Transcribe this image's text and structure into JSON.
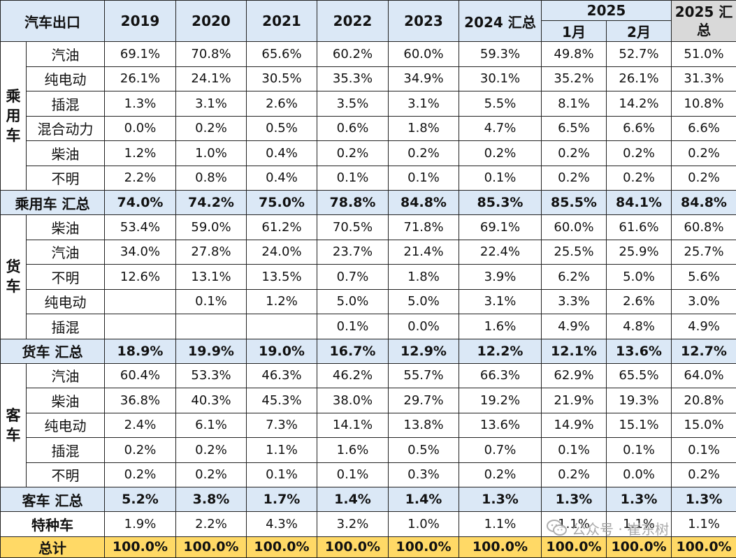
{
  "table": {
    "header": {
      "corner": "汽车出口",
      "years": [
        "2019",
        "2020",
        "2021",
        "2022",
        "2023",
        "2024 汇总"
      ],
      "group_2025": "2025",
      "months": [
        "1月",
        "2月"
      ],
      "total_2025": "2025 汇总"
    },
    "sections": [
      {
        "category": "乘用车",
        "rows": [
          {
            "fuel": "汽油",
            "values": [
              "69.1%",
              "70.8%",
              "65.6%",
              "60.2%",
              "60.0%",
              "59.3%",
              "49.8%",
              "52.7%",
              "51.0%"
            ]
          },
          {
            "fuel": "纯电动",
            "values": [
              "26.1%",
              "24.1%",
              "30.5%",
              "35.3%",
              "34.9%",
              "30.1%",
              "35.2%",
              "26.1%",
              "31.3%"
            ]
          },
          {
            "fuel": "插混",
            "values": [
              "1.3%",
              "3.1%",
              "2.6%",
              "3.5%",
              "3.1%",
              "5.5%",
              "8.1%",
              "14.2%",
              "10.8%"
            ]
          },
          {
            "fuel": "混合动力",
            "values": [
              "0.0%",
              "0.2%",
              "0.5%",
              "0.6%",
              "1.8%",
              "4.7%",
              "6.5%",
              "6.6%",
              "6.6%"
            ]
          },
          {
            "fuel": "柴油",
            "values": [
              "1.2%",
              "1.0%",
              "0.4%",
              "0.2%",
              "0.2%",
              "0.2%",
              "0.2%",
              "0.2%",
              "0.2%"
            ]
          },
          {
            "fuel": "不明",
            "values": [
              "2.2%",
              "0.8%",
              "0.4%",
              "0.1%",
              "0.1%",
              "0.1%",
              "0.2%",
              "0.2%",
              "0.2%"
            ]
          }
        ],
        "total": {
          "label": "乘用车 汇总",
          "values": [
            "74.0%",
            "74.2%",
            "75.0%",
            "78.8%",
            "84.8%",
            "85.3%",
            "85.5%",
            "84.1%",
            "84.8%"
          ]
        }
      },
      {
        "category": "货车",
        "rows": [
          {
            "fuel": "柴油",
            "values": [
              "53.4%",
              "59.0%",
              "61.2%",
              "70.5%",
              "71.8%",
              "69.1%",
              "60.0%",
              "61.6%",
              "60.8%"
            ]
          },
          {
            "fuel": "汽油",
            "values": [
              "34.0%",
              "27.8%",
              "24.0%",
              "23.7%",
              "21.4%",
              "22.4%",
              "25.5%",
              "25.9%",
              "25.7%"
            ]
          },
          {
            "fuel": "不明",
            "values": [
              "12.6%",
              "13.1%",
              "13.5%",
              "0.7%",
              "1.8%",
              "3.9%",
              "6.2%",
              "5.0%",
              "5.6%"
            ]
          },
          {
            "fuel": "纯电动",
            "values": [
              "",
              "0.1%",
              "1.2%",
              "5.0%",
              "5.0%",
              "3.1%",
              "3.3%",
              "2.6%",
              "3.0%"
            ]
          },
          {
            "fuel": "插混",
            "values": [
              "",
              "",
              "",
              "0.1%",
              "0.0%",
              "1.6%",
              "4.9%",
              "4.8%",
              "4.9%"
            ]
          }
        ],
        "total": {
          "label": "货车 汇总",
          "values": [
            "18.9%",
            "19.9%",
            "19.0%",
            "16.7%",
            "12.9%",
            "12.2%",
            "12.1%",
            "13.6%",
            "12.7%"
          ]
        }
      },
      {
        "category": "客车",
        "rows": [
          {
            "fuel": "汽油",
            "values": [
              "60.4%",
              "53.3%",
              "46.3%",
              "46.2%",
              "55.7%",
              "66.3%",
              "62.9%",
              "65.5%",
              "64.0%"
            ]
          },
          {
            "fuel": "柴油",
            "values": [
              "36.8%",
              "40.3%",
              "45.3%",
              "38.0%",
              "29.7%",
              "19.2%",
              "21.9%",
              "19.3%",
              "20.8%"
            ]
          },
          {
            "fuel": "纯电动",
            "values": [
              "2.4%",
              "6.1%",
              "7.3%",
              "14.1%",
              "13.8%",
              "13.6%",
              "14.9%",
              "15.1%",
              "15.0%"
            ]
          },
          {
            "fuel": "插混",
            "values": [
              "0.2%",
              "0.2%",
              "1.1%",
              "1.6%",
              "0.5%",
              "0.7%",
              "0.1%",
              "0.1%",
              "0.1%"
            ]
          },
          {
            "fuel": "不明",
            "values": [
              "0.2%",
              "0.2%",
              "0.1%",
              "0.1%",
              "0.3%",
              "0.2%",
              "0.2%",
              "0.0%",
              "0.2%"
            ]
          }
        ],
        "total": {
          "label": "客车 汇总",
          "values": [
            "5.2%",
            "3.8%",
            "1.7%",
            "1.4%",
            "1.4%",
            "1.3%",
            "1.3%",
            "1.3%",
            "1.3%"
          ]
        }
      }
    ],
    "special": {
      "label": "特种车",
      "values": [
        "1.9%",
        "2.2%",
        "4.3%",
        "3.2%",
        "1.0%",
        "1.1%",
        "1.1%",
        "1.1%",
        "1.1%"
      ]
    },
    "grand_total": {
      "label": "总计",
      "values": [
        "100.0%",
        "100.0%",
        "100.0%",
        "100.0%",
        "100.0%",
        "100.0%",
        "100.0%",
        "100.0%",
        "100.0%"
      ]
    }
  },
  "watermark": {
    "text": "公众号 · 崔东树",
    "icon": "wechat-icon"
  },
  "colors": {
    "header_bg": "#dbe8f6",
    "total_bg": "#dbe8f6",
    "grand_total_bg": "#ffd966",
    "header_2025_bg": "#d9d9d9"
  }
}
